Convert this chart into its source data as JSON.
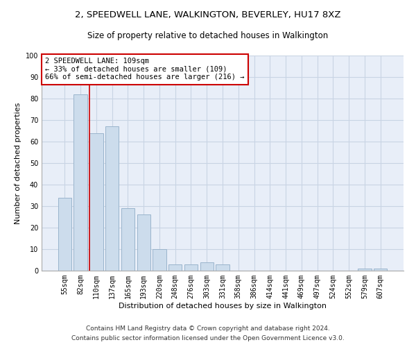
{
  "title1": "2, SPEEDWELL LANE, WALKINGTON, BEVERLEY, HU17 8XZ",
  "title2": "Size of property relative to detached houses in Walkington",
  "xlabel": "Distribution of detached houses by size in Walkington",
  "ylabel": "Number of detached properties",
  "categories": [
    "55sqm",
    "82sqm",
    "110sqm",
    "137sqm",
    "165sqm",
    "193sqm",
    "220sqm",
    "248sqm",
    "276sqm",
    "303sqm",
    "331sqm",
    "358sqm",
    "386sqm",
    "414sqm",
    "441sqm",
    "469sqm",
    "497sqm",
    "524sqm",
    "552sqm",
    "579sqm",
    "607sqm"
  ],
  "values": [
    34,
    82,
    64,
    67,
    29,
    26,
    10,
    3,
    3,
    4,
    3,
    0,
    0,
    0,
    0,
    0,
    0,
    0,
    0,
    1,
    1
  ],
  "bar_color": "#ccdcec",
  "bar_edgecolor": "#9ab4cc",
  "vline_index": 2,
  "annotation_text": "2 SPEEDWELL LANE: 109sqm\n← 33% of detached houses are smaller (109)\n66% of semi-detached houses are larger (216) →",
  "annotation_box_facecolor": "white",
  "annotation_box_edgecolor": "#cc0000",
  "vline_color": "#cc0000",
  "ylim": [
    0,
    100
  ],
  "yticks": [
    0,
    10,
    20,
    30,
    40,
    50,
    60,
    70,
    80,
    90,
    100
  ],
  "grid_color": "#c8d4e4",
  "bg_color": "#e8eef8",
  "footer1": "Contains HM Land Registry data © Crown copyright and database right 2024.",
  "footer2": "Contains public sector information licensed under the Open Government Licence v3.0.",
  "title1_fontsize": 9.5,
  "title2_fontsize": 8.5,
  "axis_label_fontsize": 8,
  "tick_fontsize": 7,
  "annot_fontsize": 7.5,
  "footer_fontsize": 6.5
}
